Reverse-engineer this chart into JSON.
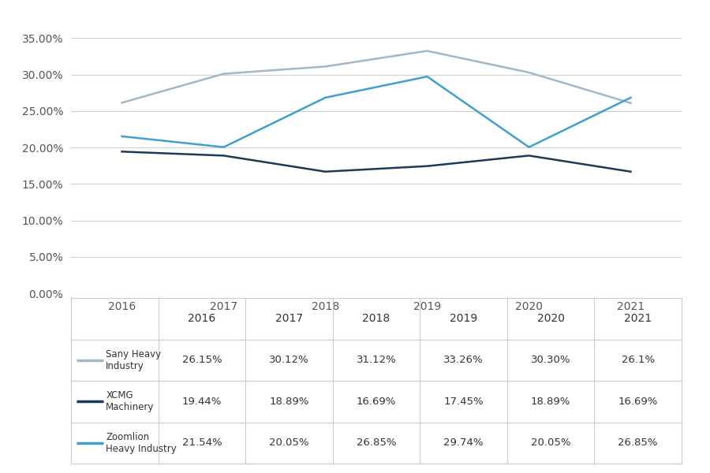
{
  "years": [
    2016,
    2017,
    2018,
    2019,
    2020,
    2021
  ],
  "series": [
    {
      "name": "Sany Heavy\nIndustry",
      "values": [
        0.2615,
        0.3012,
        0.3112,
        0.3326,
        0.303,
        0.261
      ],
      "color": "#a0b8c8",
      "linewidth": 1.8
    },
    {
      "name": "XCMG\nMachinery",
      "values": [
        0.1944,
        0.1889,
        0.1669,
        0.1745,
        0.1889,
        0.1669
      ],
      "color": "#1a3a5c",
      "linewidth": 1.8
    },
    {
      "name": "Zoomlion\nHeavy Industry",
      "values": [
        0.2154,
        0.2005,
        0.2685,
        0.2974,
        0.2005,
        0.2685
      ],
      "color": "#3fa0d0",
      "linewidth": 1.8
    }
  ],
  "table_data": [
    [
      "26.15%",
      "30.12%",
      "31.12%",
      "33.26%",
      "30.30%",
      "26.1%"
    ],
    [
      "19.44%",
      "18.89%",
      "16.69%",
      "17.45%",
      "18.89%",
      "16.69%"
    ],
    [
      "21.54%",
      "20.05%",
      "26.85%",
      "29.74%",
      "20.05%",
      "26.85%"
    ]
  ],
  "table_col_labels": [
    "2016",
    "2017",
    "2018",
    "2019",
    "2020",
    "2021"
  ],
  "table_row_labels": [
    "Sany Heavy\nIndustry",
    "XCMG\nMachinery",
    "Zoomlion\nHeavy Industry"
  ],
  "ylim": [
    0.0,
    0.37
  ],
  "yticks": [
    0.0,
    0.05,
    0.1,
    0.15,
    0.2,
    0.25,
    0.3,
    0.35
  ],
  "background_color": "#ffffff",
  "grid_color": "#d0d0d0",
  "table_line_color": "#cccccc",
  "fig_width": 9.0,
  "fig_height": 6.0
}
